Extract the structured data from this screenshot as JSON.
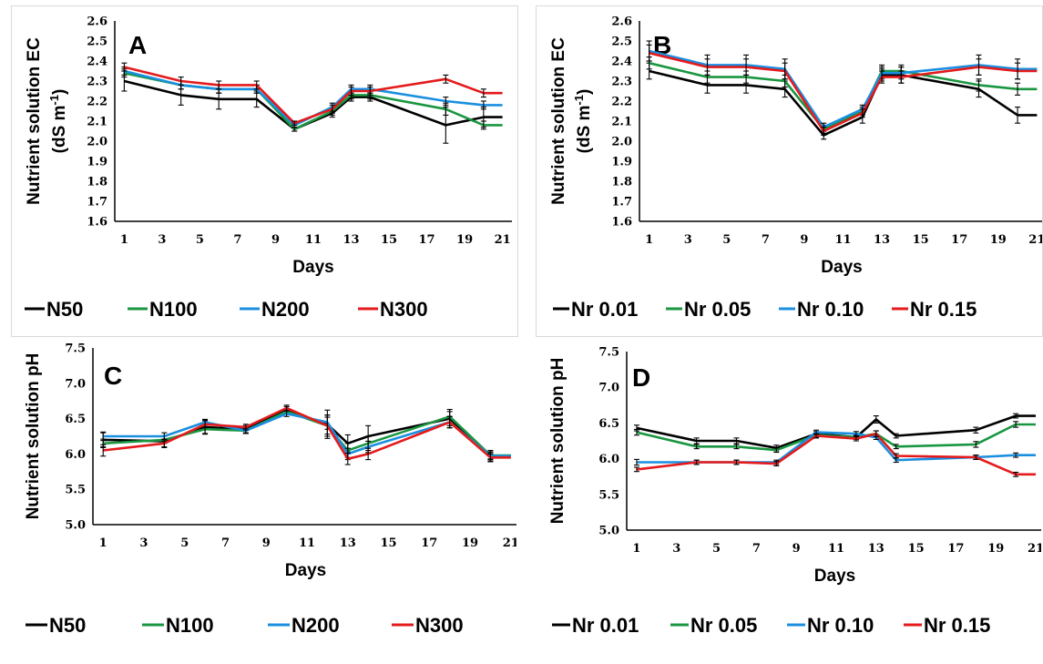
{
  "chart_data": [
    {
      "type": "line",
      "panel_label": "A",
      "ylabel": [
        "Nutrient solution EC",
        "(dS m",
        "-1",
        ")"
      ],
      "xlabel": "Days",
      "ylim": [
        1.6,
        2.6
      ],
      "yticks": [
        "1.6",
        "1.7",
        "1.8",
        "1.9",
        "2.0",
        "2.1",
        "2.2",
        "2.3",
        "2.4",
        "2.5",
        "2.6"
      ],
      "xlim": [
        0.5,
        21.5
      ],
      "xticks": [
        "1",
        "3",
        "5",
        "7",
        "9",
        "11",
        "13",
        "15",
        "17",
        "19",
        "21"
      ],
      "grid": false,
      "legend": "bottom",
      "series": [
        {
          "name": "N50",
          "color": "#000000",
          "x": [
            1,
            4,
            6,
            8,
            10,
            12,
            13,
            14,
            18,
            20,
            21
          ],
          "y": [
            2.3,
            2.23,
            2.21,
            2.21,
            2.06,
            2.14,
            2.22,
            2.22,
            2.08,
            2.12,
            2.12
          ],
          "err": [
            0.05,
            0.05,
            0.05,
            0.04,
            0.01,
            0.02,
            0.02,
            0.02,
            0.09,
            0.05,
            0
          ]
        },
        {
          "name": "N100",
          "color": "#1a9641",
          "x": [
            1,
            4,
            6,
            8,
            10,
            12,
            13,
            14,
            18,
            20,
            21
          ],
          "y": [
            2.34,
            2.28,
            2.26,
            2.26,
            2.06,
            2.15,
            2.23,
            2.23,
            2.16,
            2.08,
            2.08
          ],
          "err": [
            0.02,
            0.02,
            0.02,
            0.02,
            0.01,
            0.02,
            0.02,
            0.02,
            0.03,
            0.02,
            0
          ]
        },
        {
          "name": "N200",
          "color": "#1a8fe0",
          "x": [
            1,
            4,
            6,
            8,
            10,
            12,
            13,
            14,
            18,
            20,
            21
          ],
          "y": [
            2.35,
            2.28,
            2.26,
            2.26,
            2.08,
            2.17,
            2.26,
            2.26,
            2.2,
            2.18,
            2.18
          ],
          "err": [
            0.02,
            0.02,
            0.02,
            0.02,
            0.01,
            0.02,
            0.02,
            0.02,
            0.02,
            0.02,
            0
          ]
        },
        {
          "name": "N300",
          "color": "#e41a1c",
          "x": [
            1,
            4,
            6,
            8,
            10,
            12,
            13,
            14,
            18,
            20,
            21
          ],
          "y": [
            2.37,
            2.3,
            2.28,
            2.28,
            2.09,
            2.16,
            2.25,
            2.25,
            2.31,
            2.24,
            2.24
          ],
          "err": [
            0.02,
            0.02,
            0.02,
            0.02,
            0.01,
            0.02,
            0.02,
            0.02,
            0.02,
            0.02,
            0
          ]
        }
      ]
    },
    {
      "type": "line",
      "panel_label": "B",
      "ylabel": [
        "Nutrient solution EC",
        "(dS m",
        "-1",
        ")"
      ],
      "xlabel": "Days",
      "ylim": [
        1.6,
        2.6
      ],
      "yticks": [
        "1.6",
        "1.7",
        "1.8",
        "1.9",
        "2.0",
        "2.1",
        "2.2",
        "2.3",
        "2.4",
        "2.5",
        "2.6"
      ],
      "xlim": [
        0.5,
        21.5
      ],
      "xticks": [
        "1",
        "3",
        "5",
        "7",
        "9",
        "11",
        "13",
        "15",
        "17",
        "19",
        "21"
      ],
      "grid": false,
      "legend": "bottom",
      "series": [
        {
          "name": "Nr 0.01",
          "color": "#000000",
          "x": [
            1,
            4,
            6,
            8,
            10,
            12,
            13,
            14,
            18,
            20,
            21
          ],
          "y": [
            2.35,
            2.28,
            2.28,
            2.26,
            2.03,
            2.12,
            2.33,
            2.33,
            2.26,
            2.13,
            2.13
          ],
          "err": [
            0.04,
            0.04,
            0.04,
            0.04,
            0.02,
            0.03,
            0.03,
            0.04,
            0.04,
            0.04,
            0
          ]
        },
        {
          "name": "Nr 0.05",
          "color": "#1a9641",
          "x": [
            1,
            4,
            6,
            8,
            10,
            12,
            13,
            14,
            18,
            20,
            21
          ],
          "y": [
            2.39,
            2.32,
            2.32,
            2.3,
            2.06,
            2.15,
            2.35,
            2.35,
            2.28,
            2.26,
            2.26
          ],
          "err": [
            0.03,
            0.03,
            0.03,
            0.03,
            0.02,
            0.02,
            0.03,
            0.03,
            0.03,
            0.03,
            0
          ]
        },
        {
          "name": "Nr 0.10",
          "color": "#1a8fe0",
          "x": [
            1,
            4,
            6,
            8,
            10,
            12,
            13,
            14,
            18,
            20,
            21
          ],
          "y": [
            2.45,
            2.38,
            2.38,
            2.36,
            2.07,
            2.16,
            2.34,
            2.34,
            2.38,
            2.36,
            2.36
          ],
          "err": [
            0.05,
            0.05,
            0.05,
            0.05,
            0.02,
            0.02,
            0.03,
            0.03,
            0.05,
            0.05,
            0
          ]
        },
        {
          "name": "Nr 0.15",
          "color": "#e41a1c",
          "x": [
            1,
            4,
            6,
            8,
            10,
            12,
            13,
            14,
            18,
            20,
            21
          ],
          "y": [
            2.44,
            2.37,
            2.37,
            2.35,
            2.05,
            2.14,
            2.32,
            2.32,
            2.37,
            2.35,
            2.35
          ],
          "err": [
            0.04,
            0.04,
            0.04,
            0.04,
            0.02,
            0.02,
            0.03,
            0.03,
            0.04,
            0.04,
            0
          ]
        }
      ]
    },
    {
      "type": "line",
      "panel_label": "C",
      "ylabel": [
        "Nutrient solution pH"
      ],
      "xlabel": "Days",
      "ylim": [
        5.0,
        7.5
      ],
      "yticks": [
        "5.0",
        "5.5",
        "6.0",
        "6.5",
        "7.0",
        "7.5"
      ],
      "xlim": [
        0.5,
        21.5
      ],
      "xticks": [
        "1",
        "3",
        "5",
        "7",
        "9",
        "11",
        "13",
        "15",
        "17",
        "19",
        "21"
      ],
      "grid": false,
      "legend": "bottom",
      "series": [
        {
          "name": "N50",
          "color": "#000000",
          "x": [
            1,
            4,
            6,
            8,
            10,
            12,
            13,
            14,
            18,
            20,
            21
          ],
          "y": [
            6.2,
            6.18,
            6.38,
            6.35,
            6.62,
            6.42,
            6.15,
            6.25,
            6.5,
            5.97,
            5.97
          ],
          "err": [
            0.1,
            0.08,
            0.1,
            0.05,
            0.05,
            0.2,
            0.12,
            0.15,
            0.1,
            0.08,
            0
          ]
        },
        {
          "name": "N100",
          "color": "#1a9641",
          "x": [
            1,
            4,
            6,
            8,
            10,
            12,
            13,
            14,
            18,
            20,
            21
          ],
          "y": [
            6.15,
            6.2,
            6.35,
            6.33,
            6.6,
            6.4,
            6.05,
            6.15,
            6.53,
            5.98,
            5.98
          ],
          "err": [
            0.06,
            0.05,
            0.06,
            0.04,
            0.04,
            0.15,
            0.1,
            0.1,
            0.1,
            0.05,
            0
          ]
        },
        {
          "name": "N200",
          "color": "#1a8fe0",
          "x": [
            1,
            4,
            6,
            8,
            10,
            12,
            13,
            14,
            18,
            20,
            21
          ],
          "y": [
            6.25,
            6.25,
            6.45,
            6.33,
            6.57,
            6.45,
            6.0,
            6.1,
            6.45,
            5.97,
            5.97
          ],
          "err": [
            0.06,
            0.05,
            0.04,
            0.04,
            0.04,
            0.1,
            0.08,
            0.08,
            0.08,
            0.05,
            0
          ]
        },
        {
          "name": "N300",
          "color": "#e41a1c",
          "x": [
            1,
            4,
            6,
            8,
            10,
            12,
            13,
            14,
            18,
            20,
            21
          ],
          "y": [
            6.05,
            6.15,
            6.42,
            6.38,
            6.65,
            6.4,
            5.93,
            6.0,
            6.45,
            5.95,
            5.95
          ],
          "err": [
            0.08,
            0.06,
            0.05,
            0.04,
            0.04,
            0.12,
            0.08,
            0.08,
            0.08,
            0.05,
            0
          ]
        }
      ]
    },
    {
      "type": "line",
      "panel_label": "D",
      "ylabel": [
        "Nutrient solution pH"
      ],
      "xlabel": "Days",
      "ylim": [
        5.0,
        7.5
      ],
      "yticks": [
        "5.0",
        "5.5",
        "6.0",
        "6.5",
        "7.0",
        "7.5"
      ],
      "xlim": [
        0.5,
        21.5
      ],
      "xticks": [
        "1",
        "3",
        "5",
        "7",
        "9",
        "11",
        "13",
        "15",
        "17",
        "19",
        "21"
      ],
      "grid": false,
      "legend": "bottom",
      "series": [
        {
          "name": "Nr 0.01",
          "color": "#000000",
          "x": [
            1,
            4,
            6,
            8,
            10,
            12,
            13,
            14,
            18,
            20,
            21
          ],
          "y": [
            6.43,
            6.25,
            6.25,
            6.15,
            6.35,
            6.3,
            6.55,
            6.32,
            6.4,
            6.6,
            6.6
          ],
          "err": [
            0.04,
            0.04,
            0.04,
            0.04,
            0.03,
            0.03,
            0.05,
            0.03,
            0.04,
            0.03,
            0
          ]
        },
        {
          "name": "Nr 0.05",
          "color": "#1a9641",
          "x": [
            1,
            4,
            6,
            8,
            10,
            12,
            13,
            14,
            18,
            20,
            21
          ],
          "y": [
            6.37,
            6.17,
            6.17,
            6.12,
            6.33,
            6.3,
            6.35,
            6.17,
            6.2,
            6.48,
            6.48
          ],
          "err": [
            0.04,
            0.03,
            0.03,
            0.03,
            0.03,
            0.03,
            0.04,
            0.03,
            0.04,
            0.04,
            0
          ]
        },
        {
          "name": "Nr 0.10",
          "color": "#1a8fe0",
          "x": [
            1,
            4,
            6,
            8,
            10,
            12,
            13,
            14,
            18,
            20,
            21
          ],
          "y": [
            5.95,
            5.95,
            5.95,
            5.95,
            6.37,
            6.35,
            6.3,
            5.98,
            6.02,
            6.05,
            6.05
          ],
          "err": [
            0.04,
            0.03,
            0.03,
            0.03,
            0.03,
            0.03,
            0.03,
            0.03,
            0.03,
            0.03,
            0
          ]
        },
        {
          "name": "Nr 0.15",
          "color": "#e41a1c",
          "x": [
            1,
            4,
            6,
            8,
            10,
            12,
            13,
            14,
            18,
            20,
            21
          ],
          "y": [
            5.85,
            5.95,
            5.95,
            5.93,
            6.32,
            6.28,
            6.35,
            6.04,
            6.02,
            5.78,
            5.78
          ],
          "err": [
            0.03,
            0.03,
            0.03,
            0.03,
            0.03,
            0.03,
            0.04,
            0.03,
            0.03,
            0.03,
            0
          ]
        }
      ]
    }
  ]
}
